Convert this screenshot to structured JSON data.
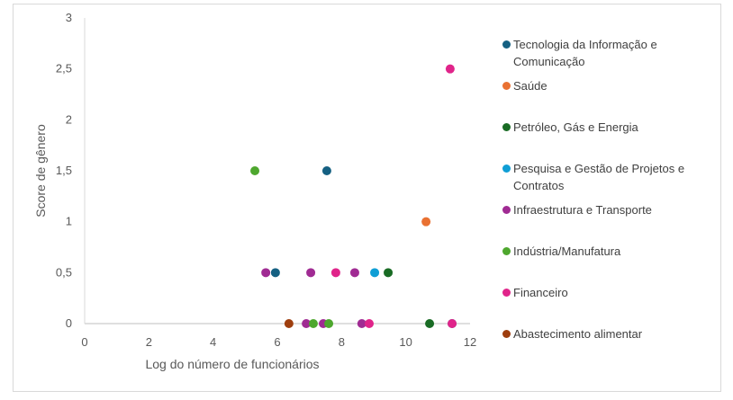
{
  "chart_data": {
    "type": "scatter",
    "xlabel": "Log do número de funcionários",
    "ylabel": "Score de gênero",
    "xlim": [
      0,
      12
    ],
    "ylim": [
      0,
      3
    ],
    "xticks": [
      "0",
      "2",
      "4",
      "6",
      "8",
      "10",
      "12"
    ],
    "yticks": [
      "0",
      "0,5",
      "1",
      "1,5",
      "2",
      "2,5",
      "3"
    ],
    "legend_position": "right",
    "series": [
      {
        "name": "Tecnologia da Informação e Comunicação",
        "color": "#156082",
        "points": [
          [
            7.54,
            1.5
          ],
          [
            5.94,
            0.5
          ],
          [
            11.44,
            0
          ]
        ]
      },
      {
        "name": "Saúde",
        "color": "#E97132",
        "points": [
          [
            10.63,
            1.0
          ]
        ]
      },
      {
        "name": "Petróleo, Gás e Energia",
        "color": "#196B24",
        "points": [
          [
            9.45,
            0.5
          ],
          [
            10.74,
            0
          ]
        ]
      },
      {
        "name": "Pesquisa e Gestão de Projetos e Contratos",
        "color": "#0F9ED5",
        "points": [
          [
            9.03,
            0.5
          ]
        ]
      },
      {
        "name": "Infraestrutura e Transporte",
        "color": "#A02B93",
        "points": [
          [
            5.64,
            0.5
          ],
          [
            7.04,
            0.5
          ],
          [
            8.41,
            0.5
          ],
          [
            6.9,
            0
          ],
          [
            7.43,
            0
          ],
          [
            8.63,
            0
          ]
        ]
      },
      {
        "name": "Indústria/Manufatura",
        "color": "#4EA72E",
        "points": [
          [
            5.3,
            1.5
          ],
          [
            7.12,
            0
          ],
          [
            7.6,
            0
          ]
        ]
      },
      {
        "name": "Financeiro",
        "color": "#E0248A",
        "points": [
          [
            11.38,
            2.5
          ],
          [
            7.82,
            0.5
          ],
          [
            8.86,
            0
          ],
          [
            11.44,
            0
          ]
        ]
      },
      {
        "name": "Abastecimento alimentar",
        "color": "#9E3E0E",
        "points": [
          [
            6.36,
            0
          ]
        ]
      }
    ]
  }
}
